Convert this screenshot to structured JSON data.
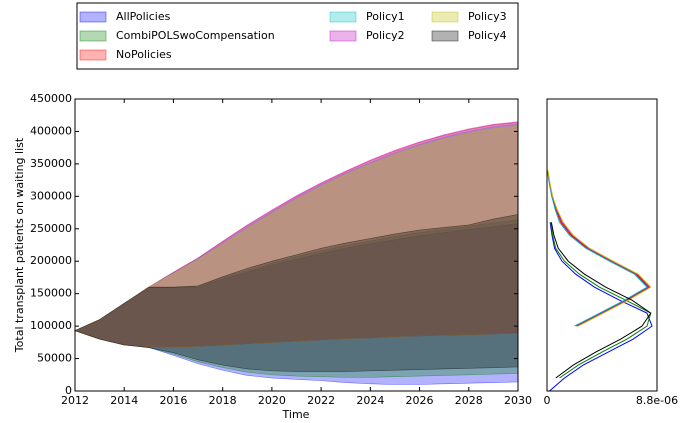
{
  "chart_data": [
    {
      "type": "band",
      "xlabel": "Time",
      "ylabel": "Total transplant patients on waiting list",
      "x": [
        2012,
        2013,
        2014,
        2015,
        2016,
        2017,
        2018,
        2019,
        2020,
        2021,
        2022,
        2023,
        2024,
        2025,
        2026,
        2027,
        2028,
        2029,
        2030
      ],
      "xlim": [
        2012,
        2030
      ],
      "xticks": [
        2012,
        2014,
        2016,
        2018,
        2020,
        2022,
        2024,
        2026,
        2028,
        2030
      ],
      "ylim": [
        0,
        450000
      ],
      "yticks": [
        0,
        50000,
        100000,
        150000,
        200000,
        250000,
        300000,
        350000,
        400000,
        450000
      ],
      "fill_alpha": 0.3,
      "series": [
        {
          "name": "AllPolicies",
          "color": "#0000ff",
          "upper": [
            93000,
            110000,
            135000,
            160000,
            160000,
            160000,
            172000,
            183000,
            194000,
            203000,
            212000,
            220000,
            227000,
            233000,
            239000,
            244000,
            249000,
            253000,
            258000
          ],
          "lower": [
            93000,
            80000,
            71000,
            67000,
            55000,
            42000,
            32000,
            24000,
            20000,
            18000,
            16000,
            13000,
            11000,
            10000,
            10000,
            11000,
            12000,
            13000,
            14000
          ]
        },
        {
          "name": "CombiPOLSwoCompensation",
          "color": "#008000",
          "upper": [
            93000,
            110000,
            135000,
            160000,
            160000,
            161000,
            174000,
            186000,
            197000,
            207000,
            216000,
            224000,
            231000,
            238000,
            244000,
            249000,
            254000,
            259000,
            264000
          ],
          "lower": [
            93000,
            80000,
            71000,
            67000,
            57000,
            45000,
            36000,
            29000,
            25000,
            23000,
            22000,
            21000,
            21000,
            22000,
            23000,
            24000,
            25000,
            26000,
            27000
          ]
        },
        {
          "name": "NoPolicies",
          "color": "#ff0000",
          "upper": [
            93000,
            110000,
            135000,
            160000,
            183000,
            205000,
            230000,
            255000,
            278000,
            300000,
            320000,
            338000,
            355000,
            370000,
            383000,
            394000,
            403000,
            410000,
            414000
          ],
          "lower": [
            93000,
            80000,
            71000,
            68000,
            68000,
            69000,
            71000,
            73000,
            75000,
            77000,
            79000,
            81000,
            82000,
            84000,
            85000,
            86000,
            87000,
            88000,
            89000
          ]
        },
        {
          "name": "Policy1",
          "color": "#00bfbf",
          "upper": [
            93000,
            110000,
            135000,
            160000,
            182000,
            204000,
            228000,
            253000,
            276000,
            298000,
            318000,
            336000,
            352000,
            367000,
            380000,
            391000,
            400000,
            407000,
            411000
          ],
          "lower": [
            93000,
            80000,
            71000,
            68000,
            68000,
            69000,
            71000,
            73000,
            75000,
            77000,
            79000,
            81000,
            82000,
            84000,
            85000,
            86000,
            87000,
            88000,
            89000
          ]
        },
        {
          "name": "Policy2",
          "color": "#bf00bf",
          "upper": [
            93000,
            110000,
            135000,
            160000,
            183000,
            205000,
            231000,
            256000,
            279000,
            301000,
            321000,
            339000,
            356000,
            371000,
            384000,
            395000,
            404000,
            411000,
            415000
          ],
          "lower": [
            93000,
            80000,
            71000,
            68000,
            68000,
            69000,
            71000,
            73000,
            75000,
            77000,
            79000,
            81000,
            82000,
            84000,
            85000,
            86000,
            87000,
            88000,
            90000
          ]
        },
        {
          "name": "Policy3",
          "color": "#bfbf00",
          "upper": [
            93000,
            110000,
            135000,
            160000,
            181000,
            202000,
            226000,
            250000,
            273000,
            295000,
            315000,
            333000,
            349000,
            364000,
            377000,
            388000,
            397000,
            404000,
            408000
          ],
          "lower": [
            93000,
            80000,
            71000,
            68000,
            68000,
            69000,
            71000,
            73000,
            75000,
            77000,
            79000,
            81000,
            82000,
            84000,
            85000,
            86000,
            87000,
            88000,
            89000
          ]
        },
        {
          "name": "Policy4",
          "color": "#000000",
          "upper": [
            93000,
            110000,
            135000,
            160000,
            160000,
            162000,
            176000,
            189000,
            200000,
            210000,
            220000,
            228000,
            235000,
            242000,
            248000,
            252000,
            256000,
            265000,
            272000
          ],
          "lower": [
            93000,
            80000,
            71000,
            67000,
            59000,
            48000,
            40000,
            34000,
            31000,
            30000,
            30000,
            30000,
            31000,
            32000,
            33000,
            34000,
            35000,
            36000,
            37000
          ]
        }
      ]
    },
    {
      "type": "density",
      "y": [
        0,
        20000,
        40000,
        60000,
        80000,
        100000,
        120000,
        140000,
        160000,
        180000,
        200000,
        220000,
        240000,
        260000,
        280000,
        300000,
        320000,
        340000
      ],
      "ylim": [
        0,
        450000
      ],
      "xlim": [
        0,
        8.8e-06
      ],
      "xticks": [
        0,
        {
          "value": 8.8e-06,
          "label": "8.8e-06"
        }
      ],
      "series": [
        {
          "color": "#0000ff",
          "values": [
            2e-07,
            1.4e-06,
            2.9e-06,
            4.9e-06,
            6.9e-06,
            8.4e-06,
            8e-06,
            5.8e-06,
            3.8e-06,
            2.3e-06,
            1.2e-06,
            6e-07,
            4e-07,
            2.5e-07,
            null,
            null,
            null,
            null
          ]
        },
        {
          "color": "#008000",
          "values": [
            null,
            1e-06,
            2.5e-06,
            4.4e-06,
            6.4e-06,
            8e-06,
            8.3e-06,
            6.3e-06,
            4.2e-06,
            2.6e-06,
            1.4e-06,
            7e-07,
            4.5e-07,
            3e-07,
            null,
            null,
            null,
            null
          ]
        },
        {
          "color": "#ff0000",
          "values": [
            null,
            null,
            null,
            null,
            null,
            2.3e-06,
            4.3e-06,
            6.3e-06,
            8.1e-06,
            7.1e-06,
            5.1e-06,
            3.2e-06,
            1.9e-06,
            1.1e-06,
            7e-07,
            4e-07,
            2e-07,
            5e-08
          ]
        },
        {
          "color": "#00bfbf",
          "values": [
            null,
            null,
            null,
            null,
            null,
            2.2e-06,
            4.2e-06,
            6.2e-06,
            8e-06,
            7e-06,
            5e-06,
            3.1e-06,
            1.8e-06,
            1e-06,
            6.5e-07,
            3.8e-07,
            1.8e-07,
            4e-08
          ]
        },
        {
          "color": "#bf00bf",
          "values": [
            null,
            null,
            null,
            null,
            null,
            2.4e-06,
            4.4e-06,
            6.4e-06,
            8.2e-06,
            7.2e-06,
            5.2e-06,
            3.3e-06,
            2e-06,
            1.2e-06,
            7.5e-07,
            4.2e-07,
            2.2e-07,
            6e-08
          ]
        },
        {
          "color": "#bfbf00",
          "values": [
            null,
            null,
            null,
            null,
            null,
            2.5e-06,
            4.5e-06,
            6.5e-06,
            8.3e-06,
            7.3e-06,
            5.3e-06,
            3.4e-06,
            2.1e-06,
            1.3e-06,
            8e-07,
            4.5e-07,
            2.4e-07,
            7e-08
          ]
        },
        {
          "color": "#000000",
          "values": [
            null,
            7e-07,
            2.1e-06,
            3.9e-06,
            5.9e-06,
            7.6e-06,
            8.3e-06,
            6.8e-06,
            4.7e-06,
            3e-06,
            1.7e-06,
            9e-07,
            5.5e-07,
            3.5e-07,
            null,
            null,
            null,
            null
          ]
        }
      ]
    }
  ]
}
